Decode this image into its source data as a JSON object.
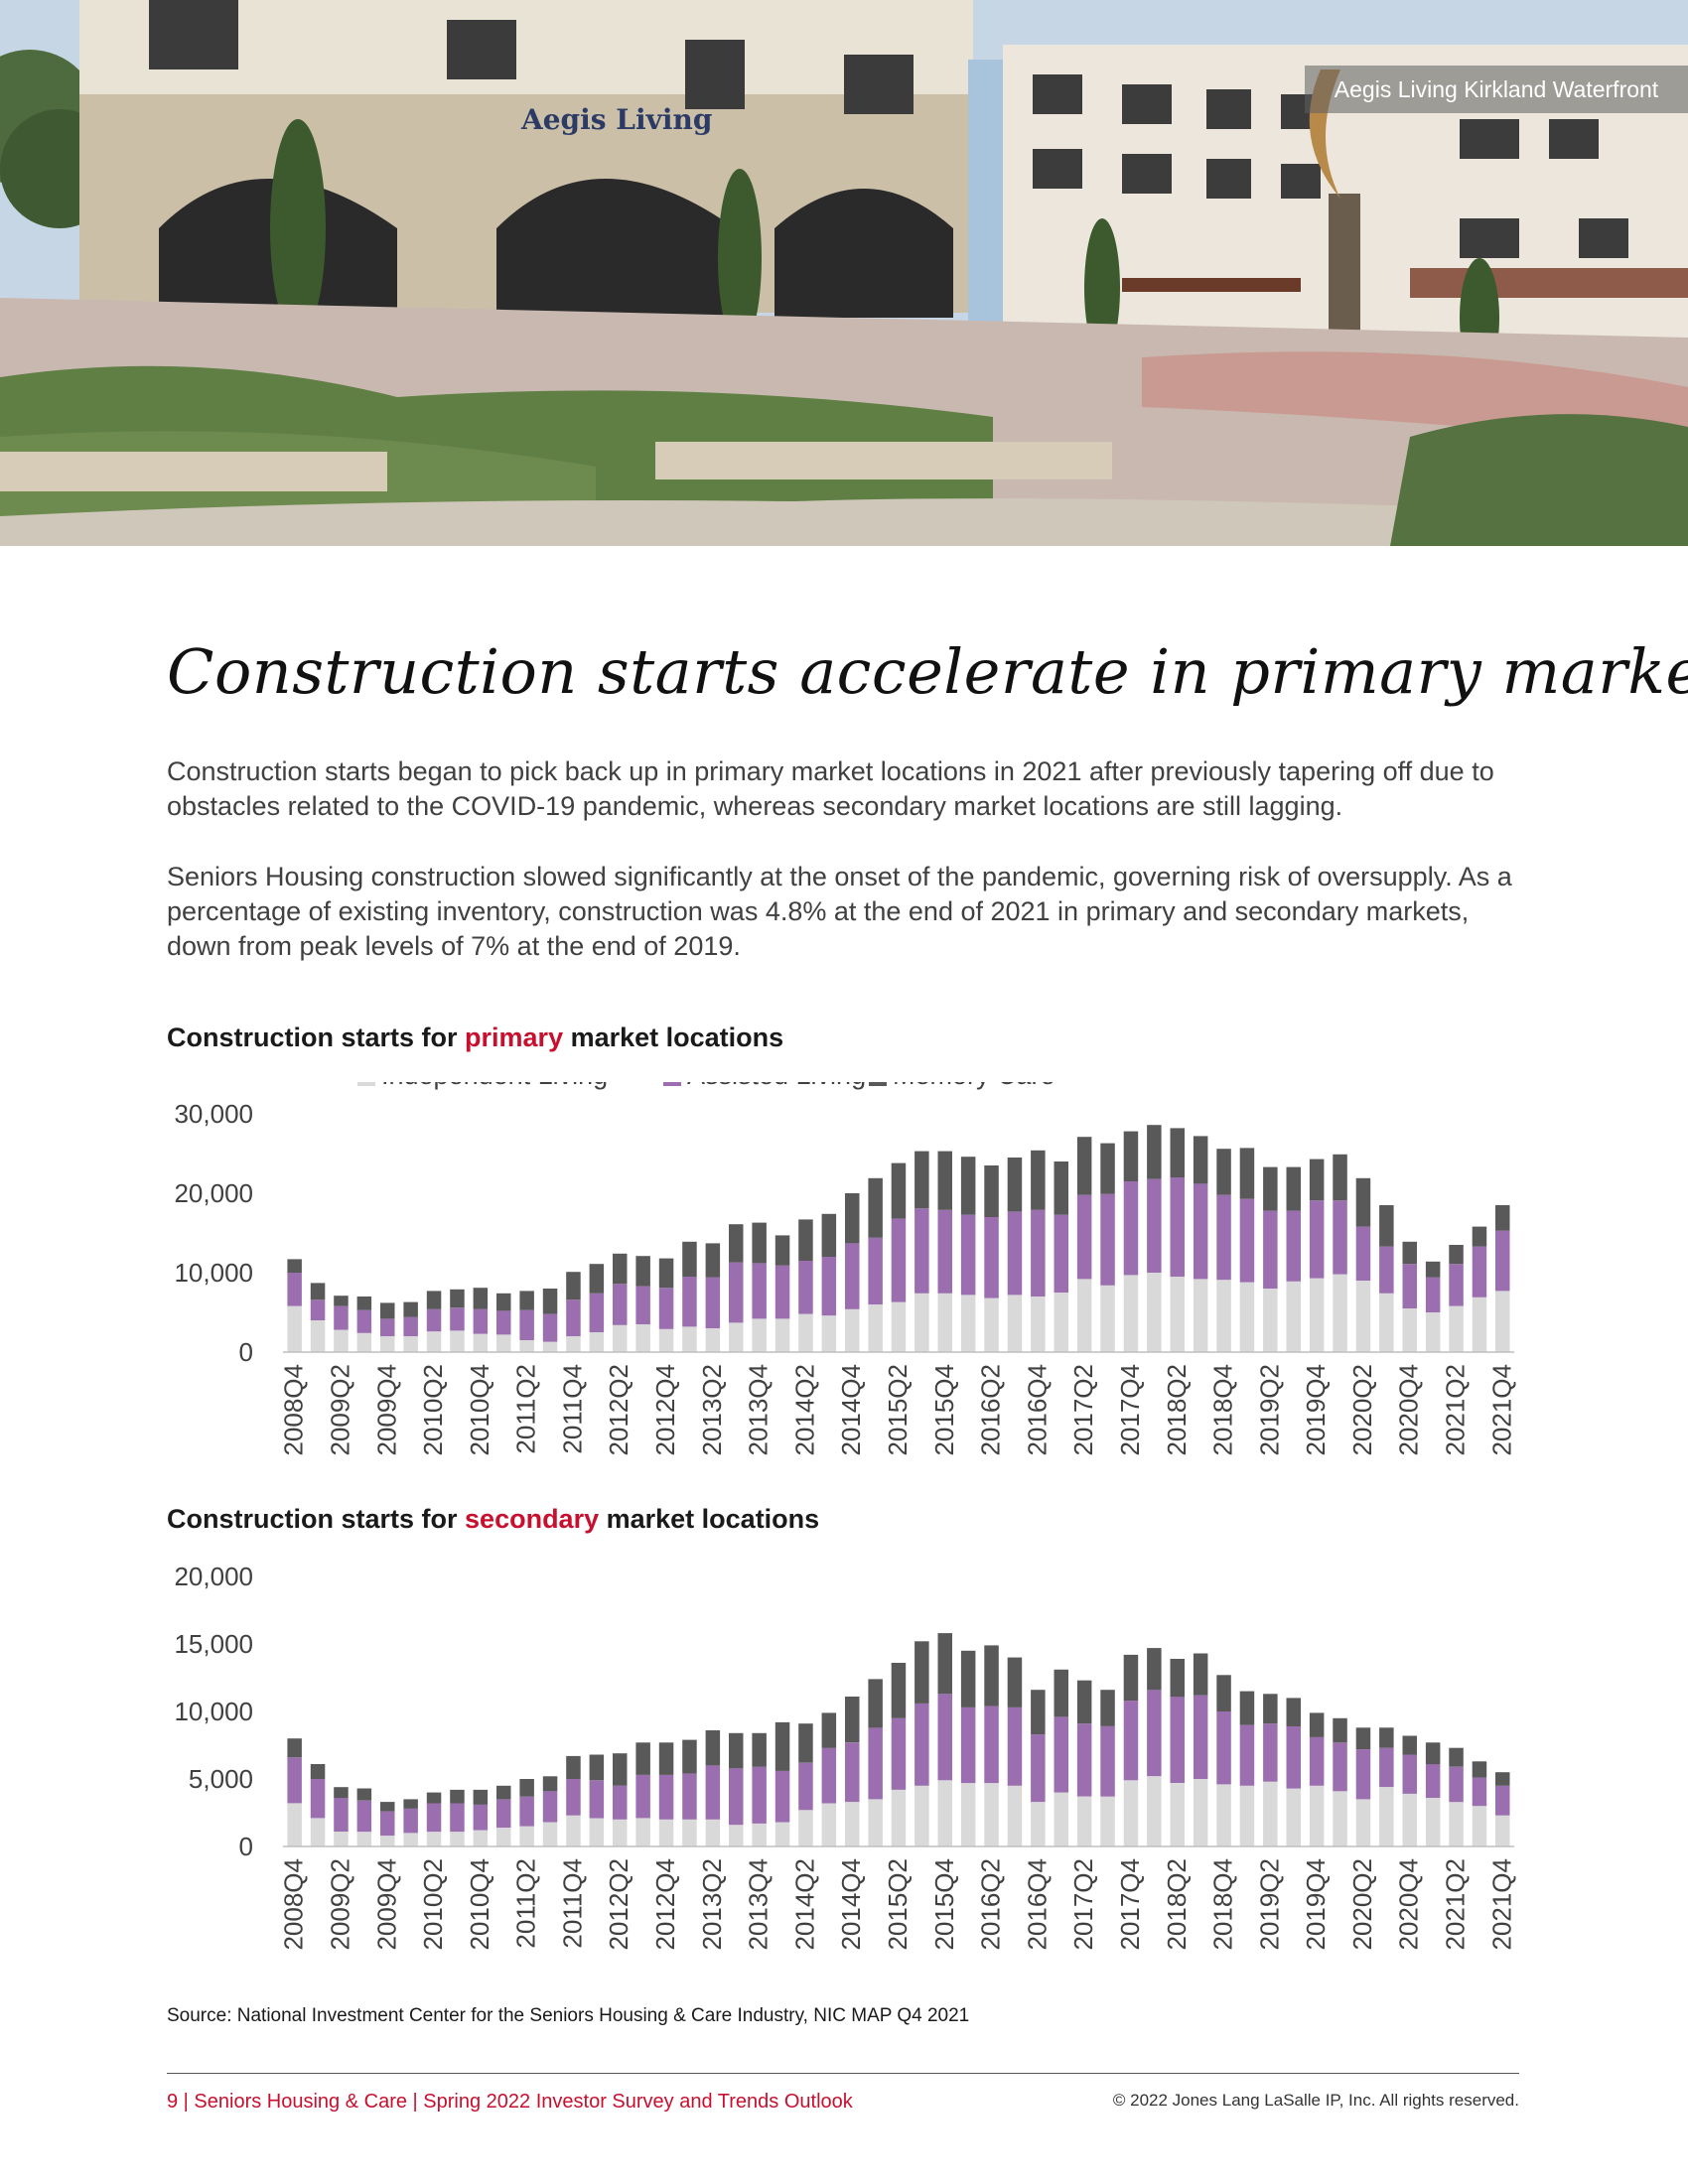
{
  "hero": {
    "caption": "Aegis Living Kirkland Waterfront",
    "sign": "Aegis Living"
  },
  "title": "Construction starts accelerate in primary markets",
  "paragraphs": [
    "Construction starts began to pick back up in primary market locations in 2021 after previously tapering off due to obstacles related to the COVID-19 pandemic, whereas secondary market locations are still lagging.",
    "Seniors Housing construction slowed significantly at the onset of the pandemic, governing risk of oversupply. As a percentage of existing inventory, construction was 4.8% at the end of 2021 in primary and secondary markets, down from peak levels of 7% at the end of 2019."
  ],
  "chart_titles": [
    {
      "pre": "Construction starts for ",
      "hl": "primary",
      "post": " market locations"
    },
    {
      "pre": "Construction starts for ",
      "hl": "secondary",
      "post": " market locations"
    }
  ],
  "colors": {
    "il": "#d9d9d9",
    "al": "#9b6faf",
    "mc": "#595959",
    "accent": "#c8102e"
  },
  "chart_data": [
    {
      "type": "bar",
      "stacked": true,
      "title": "Construction starts for primary market locations",
      "ylim": [
        0,
        30000
      ],
      "yticks": [
        0,
        10000,
        20000,
        30000
      ],
      "ytick_labels": [
        "0",
        "10,000",
        "20,000",
        "30,000"
      ],
      "legend": [
        "Independent Living",
        "Assisted Living",
        "Memory Care"
      ],
      "categories": [
        "2008Q4",
        "2009Q1",
        "2009Q2",
        "2009Q3",
        "2009Q4",
        "2010Q1",
        "2010Q2",
        "2010Q3",
        "2010Q4",
        "2011Q1",
        "2011Q2",
        "2011Q3",
        "2011Q4",
        "2012Q1",
        "2012Q2",
        "2012Q3",
        "2012Q4",
        "2013Q1",
        "2013Q2",
        "2013Q3",
        "2013Q4",
        "2014Q1",
        "2014Q2",
        "2014Q3",
        "2014Q4",
        "2015Q1",
        "2015Q2",
        "2015Q3",
        "2015Q4",
        "2016Q1",
        "2016Q2",
        "2016Q3",
        "2016Q4",
        "2017Q1",
        "2017Q2",
        "2017Q3",
        "2017Q4",
        "2018Q1",
        "2018Q2",
        "2018Q3",
        "2018Q4",
        "2019Q1",
        "2019Q2",
        "2019Q3",
        "2019Q4",
        "2020Q1",
        "2020Q2",
        "2020Q3",
        "2020Q4",
        "2021Q1",
        "2021Q2",
        "2021Q3",
        "2021Q4"
      ],
      "series": [
        {
          "name": "Independent Living",
          "values": [
            5800,
            4000,
            2800,
            2400,
            2000,
            2000,
            2600,
            2700,
            2300,
            2200,
            1500,
            1300,
            2000,
            2500,
            3400,
            3500,
            2900,
            3200,
            3000,
            3700,
            4200,
            4200,
            4800,
            4600,
            5400,
            6000,
            6300,
            7400,
            7400,
            7200,
            6800,
            7200,
            7000,
            7500,
            9200,
            8400,
            9700,
            10000,
            9500,
            9200,
            9100,
            8800,
            8000,
            8900,
            9300,
            9800,
            9000,
            7400,
            5500,
            5000,
            5800,
            6900,
            7700
          ]
        },
        {
          "name": "Assisted Living",
          "values": [
            4200,
            2600,
            3000,
            2900,
            2200,
            2400,
            2800,
            2900,
            3100,
            3000,
            3800,
            3500,
            4600,
            4900,
            5200,
            4800,
            5200,
            6300,
            6400,
            7600,
            7000,
            6700,
            6700,
            7400,
            8300,
            8400,
            10500,
            10700,
            10500,
            10100,
            10200,
            10500,
            10900,
            9800,
            10600,
            11500,
            11800,
            11800,
            12500,
            12000,
            10700,
            10500,
            9800,
            8900,
            9800,
            9300,
            6800,
            5900,
            5600,
            4400,
            5300,
            6400,
            7600
          ]
        },
        {
          "name": "Memory Care",
          "values": [
            1700,
            2100,
            1300,
            1700,
            2000,
            1900,
            2300,
            2300,
            2700,
            2200,
            2400,
            3200,
            3500,
            3700,
            3800,
            3800,
            3700,
            4400,
            4300,
            4800,
            5100,
            3800,
            5200,
            5400,
            6300,
            7500,
            7000,
            7200,
            7400,
            7300,
            6500,
            6800,
            7500,
            6700,
            7300,
            6400,
            6300,
            6800,
            6200,
            6000,
            5800,
            6400,
            5500,
            5500,
            5200,
            5800,
            6100,
            5200,
            2800,
            2000,
            2400,
            2500,
            3200
          ]
        }
      ]
    },
    {
      "type": "bar",
      "stacked": true,
      "title": "Construction starts for secondary market locations",
      "ylim": [
        0,
        20000
      ],
      "yticks": [
        0,
        5000,
        10000,
        15000,
        20000
      ],
      "ytick_labels": [
        "0",
        "5,000",
        "10,000",
        "15,000",
        "20,000"
      ],
      "legend": [
        "Independent Living",
        "Assisted Living",
        "Memory Care"
      ],
      "categories": [
        "2008Q4",
        "2009Q1",
        "2009Q2",
        "2009Q3",
        "2009Q4",
        "2010Q1",
        "2010Q2",
        "2010Q3",
        "2010Q4",
        "2011Q1",
        "2011Q2",
        "2011Q3",
        "2011Q4",
        "2012Q1",
        "2012Q2",
        "2012Q3",
        "2012Q4",
        "2013Q1",
        "2013Q2",
        "2013Q3",
        "2013Q4",
        "2014Q1",
        "2014Q2",
        "2014Q3",
        "2014Q4",
        "2015Q1",
        "2015Q2",
        "2015Q3",
        "2015Q4",
        "2016Q1",
        "2016Q2",
        "2016Q3",
        "2016Q4",
        "2017Q1",
        "2017Q2",
        "2017Q3",
        "2017Q4",
        "2018Q1",
        "2018Q2",
        "2018Q3",
        "2018Q4",
        "2019Q1",
        "2019Q2",
        "2019Q3",
        "2019Q4",
        "2020Q1",
        "2020Q2",
        "2020Q3",
        "2020Q4",
        "2021Q1",
        "2021Q2",
        "2021Q3",
        "2021Q4"
      ],
      "series": [
        {
          "name": "Independent Living",
          "values": [
            3200,
            2100,
            1100,
            1100,
            800,
            1000,
            1100,
            1100,
            1200,
            1400,
            1500,
            1800,
            2300,
            2100,
            2000,
            2100,
            2000,
            2000,
            2000,
            1600,
            1700,
            1800,
            2700,
            3200,
            3300,
            3500,
            4200,
            4500,
            4900,
            4700,
            4700,
            4500,
            3300,
            4000,
            3700,
            3700,
            4900,
            5200,
            4700,
            5000,
            4600,
            4500,
            4800,
            4300,
            4500,
            4100,
            3500,
            4400,
            3900,
            3600,
            3300,
            3000,
            2300
          ]
        },
        {
          "name": "Assisted Living",
          "values": [
            3400,
            2900,
            2500,
            2300,
            1800,
            1800,
            2100,
            2100,
            1900,
            2100,
            2200,
            2300,
            2700,
            2800,
            2500,
            3200,
            3300,
            3400,
            4000,
            4200,
            4200,
            3800,
            3500,
            4100,
            4400,
            5300,
            5300,
            6100,
            6400,
            5600,
            5700,
            5800,
            5000,
            5600,
            5400,
            5200,
            5900,
            6400,
            6400,
            6200,
            5400,
            4500,
            4300,
            4600,
            3600,
            3600,
            3700,
            2900,
            2900,
            2500,
            2600,
            2100,
            2200
          ]
        },
        {
          "name": "Memory Care",
          "values": [
            1400,
            1100,
            800,
            900,
            700,
            700,
            800,
            1000,
            1100,
            1000,
            1300,
            1100,
            1700,
            1900,
            2400,
            2400,
            2400,
            2500,
            2600,
            2600,
            2500,
            3600,
            2900,
            2600,
            3400,
            3600,
            4100,
            4600,
            4500,
            4200,
            4500,
            3700,
            3300,
            3500,
            3200,
            2700,
            3400,
            3100,
            2800,
            3100,
            2700,
            2500,
            2200,
            2100,
            1800,
            1800,
            1600,
            1500,
            1400,
            1600,
            1400,
            1200,
            1000
          ]
        }
      ]
    }
  ],
  "source": "Source: National Investment Center for the Seniors Housing & Care Industry, NIC MAP Q4 2021",
  "footer": {
    "left": "9 | Seniors Housing & Care | Spring 2022 Investor Survey and Trends Outlook",
    "right": "© 2022 Jones Lang LaSalle IP, Inc. All rights reserved."
  }
}
